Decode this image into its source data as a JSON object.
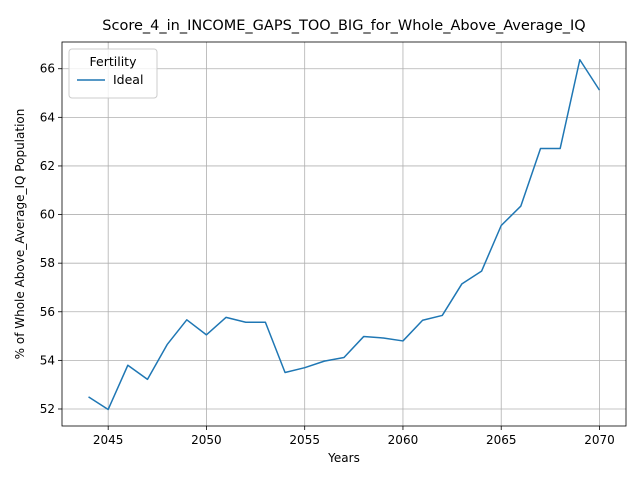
{
  "chart_data": {
    "type": "line",
    "title": "Score_4_in_INCOME_GAPS_TOO_BIG_for_Whole_Above_Average_IQ",
    "xlabel": "Years",
    "ylabel": "% of Whole Above_Average_IQ Population",
    "xlim": [
      2042.65,
      2071.35
    ],
    "ylim": [
      51.3,
      67.1
    ],
    "xticks": [
      2045,
      2050,
      2055,
      2060,
      2065,
      2070
    ],
    "yticks": [
      52,
      54,
      56,
      58,
      60,
      62,
      64,
      66
    ],
    "grid": true,
    "legend": {
      "title": "Fertility",
      "placement": "top-left"
    },
    "series": [
      {
        "name": "Ideal",
        "color": "#1f77b4",
        "x": [
          2044,
          2045,
          2046,
          2047,
          2048,
          2049,
          2050,
          2051,
          2052,
          2053,
          2054,
          2055,
          2056,
          2057,
          2058,
          2059,
          2060,
          2061,
          2062,
          2063,
          2064,
          2065,
          2066,
          2067,
          2068,
          2069,
          2070
        ],
        "y": [
          52.5,
          51.98,
          53.8,
          53.22,
          54.65,
          55.67,
          55.05,
          55.77,
          55.57,
          55.57,
          53.5,
          53.7,
          53.97,
          54.12,
          54.98,
          54.92,
          54.8,
          55.65,
          55.85,
          57.15,
          57.67,
          59.55,
          60.35,
          62.72,
          62.72,
          66.37,
          65.12
        ]
      }
    ]
  }
}
